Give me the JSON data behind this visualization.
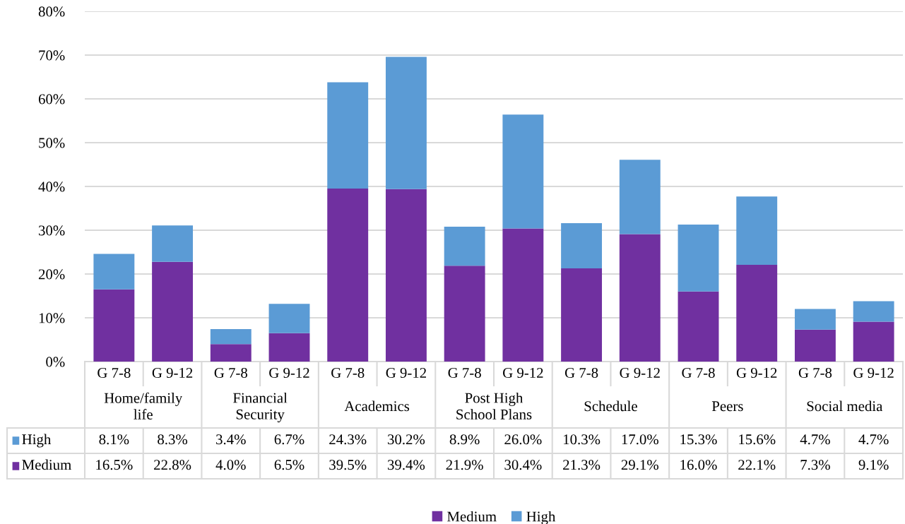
{
  "chart_data": {
    "type": "bar",
    "stacked": true,
    "categories": [
      "G 7-8",
      "G 9-12",
      "G 7-8",
      "G 9-12",
      "G 7-8",
      "G 9-12",
      "G 7-8",
      "G 9-12",
      "G 7-8",
      "G 9-12",
      "G 7-8",
      "G 9-12",
      "G 7-8",
      "G 9-12"
    ],
    "annotations": [
      "Home/family\nlife",
      "Financial\nSecurity",
      "Academics",
      "Post High\nSchool Plans",
      "Schedule",
      "Peers",
      "Social media"
    ],
    "series": [
      {
        "name": "Medium",
        "color": "#7030a0",
        "values": [
          16.5,
          22.8,
          4.0,
          6.5,
          39.5,
          39.4,
          21.9,
          30.4,
          21.3,
          29.1,
          16.0,
          22.1,
          7.3,
          9.1
        ],
        "value_labels": [
          "16.5%",
          "22.8%",
          "4.0%",
          "6.5%",
          "39.5%",
          "39.4%",
          "21.9%",
          "30.4%",
          "21.3%",
          "29.1%",
          "16.0%",
          "22.1%",
          "7.3%",
          "9.1%"
        ]
      },
      {
        "name": "High",
        "color": "#5b9bd5",
        "values": [
          8.1,
          8.3,
          3.4,
          6.7,
          24.3,
          30.2,
          8.9,
          26.0,
          10.3,
          17.0,
          15.3,
          15.6,
          4.7,
          4.7
        ],
        "value_labels": [
          "8.1%",
          "8.3%",
          "3.4%",
          "6.7%",
          "24.3%",
          "30.2%",
          "8.9%",
          "26.0%",
          "10.3%",
          "17.0%",
          "15.3%",
          "15.6%",
          "4.7%",
          "4.7%"
        ]
      }
    ],
    "ylim": [
      0,
      80
    ],
    "yticks": [
      {
        "value": 0,
        "label": "0%"
      },
      {
        "value": 10,
        "label": "10%"
      },
      {
        "value": 20,
        "label": "20%"
      },
      {
        "value": 30,
        "label": "30%"
      },
      {
        "value": 40,
        "label": "40%"
      },
      {
        "value": 50,
        "label": "50%"
      },
      {
        "value": 60,
        "label": "60%"
      },
      {
        "value": 70,
        "label": "70%"
      },
      {
        "value": 80,
        "label": "80%"
      }
    ],
    "grid": "y",
    "legend": "bottom"
  }
}
